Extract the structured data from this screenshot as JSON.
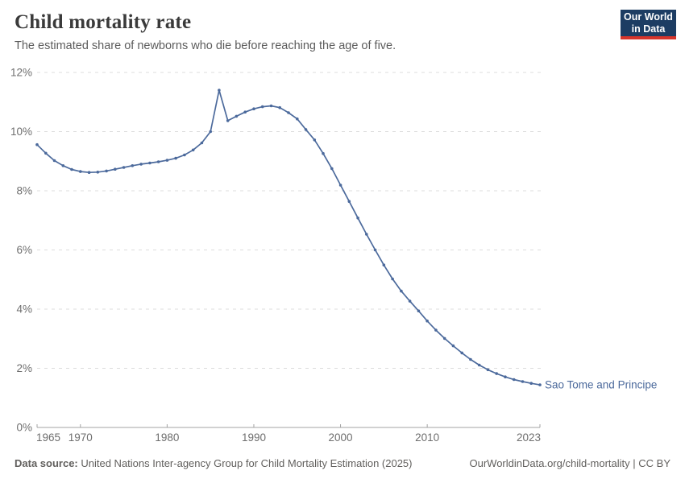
{
  "header": {
    "title": "Child mortality rate",
    "subtitle": "The estimated share of newborns who die before reaching the age of five.",
    "logo": {
      "line1": "Our World",
      "line2": "in Data",
      "bg_color": "#1d3d63",
      "accent_color": "#d7352b"
    }
  },
  "chart_data": {
    "type": "line",
    "title": "Child mortality rate",
    "xlabel": "",
    "ylabel": "",
    "xlim": [
      1965,
      2023
    ],
    "ylim": [
      0,
      12
    ],
    "x_ticks": [
      1965,
      1970,
      1980,
      1990,
      2000,
      2010,
      2023
    ],
    "y_ticks": [
      0,
      2,
      4,
      6,
      8,
      10,
      12
    ],
    "y_tick_suffix": "%",
    "grid": "horizontal-dashed",
    "legend_position": "end-of-line-label",
    "series": [
      {
        "name": "Sao Tome and Principe",
        "color": "#4C6A9C",
        "x": [
          1965,
          1966,
          1967,
          1968,
          1969,
          1970,
          1971,
          1972,
          1973,
          1974,
          1975,
          1976,
          1977,
          1978,
          1979,
          1980,
          1981,
          1982,
          1983,
          1984,
          1985,
          1986,
          1987,
          1988,
          1989,
          1990,
          1991,
          1992,
          1993,
          1994,
          1995,
          1996,
          1997,
          1998,
          1999,
          2000,
          2001,
          2002,
          2003,
          2004,
          2005,
          2006,
          2007,
          2008,
          2009,
          2010,
          2011,
          2012,
          2013,
          2014,
          2015,
          2016,
          2017,
          2018,
          2019,
          2020,
          2021,
          2022,
          2023
        ],
        "values": [
          9.56,
          9.27,
          9.02,
          8.85,
          8.72,
          8.65,
          8.62,
          8.63,
          8.67,
          8.73,
          8.79,
          8.85,
          8.9,
          8.94,
          8.98,
          9.03,
          9.1,
          9.21,
          9.38,
          9.62,
          10.0,
          11.4,
          10.37,
          10.52,
          10.66,
          10.77,
          10.84,
          10.87,
          10.81,
          10.64,
          10.43,
          10.07,
          9.72,
          9.26,
          8.75,
          8.19,
          7.64,
          7.08,
          6.53,
          6.0,
          5.49,
          5.02,
          4.61,
          4.27,
          3.94,
          3.6,
          3.29,
          3.01,
          2.76,
          2.52,
          2.3,
          2.11,
          1.95,
          1.82,
          1.71,
          1.62,
          1.55,
          1.49,
          1.44
        ]
      }
    ],
    "colors": {
      "grid": "#dcdcdc",
      "axis": "#a3a3a3",
      "tick_label": "#6e6e6e"
    }
  },
  "footer": {
    "datasource_label": "Data source:",
    "datasource_text": " United Nations Inter-agency Group for Child Mortality Estimation (2025)",
    "link_text": "OurWorldinData.org/child-mortality | CC BY"
  }
}
